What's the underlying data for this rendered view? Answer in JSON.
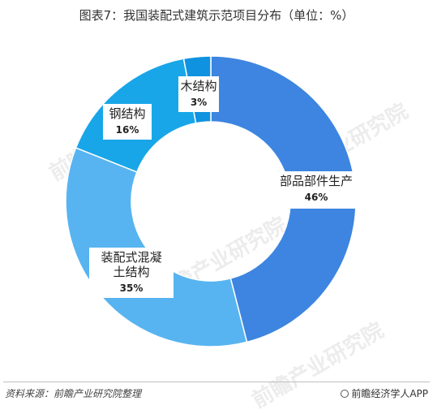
{
  "title": "图表7：我国装配式建筑示范项目分布（单位：%）",
  "chart_data": {
    "type": "pie",
    "title": "图表7：我国装配式建筑示范项目分布（单位：%）",
    "donut": true,
    "slices": [
      {
        "label": "部品部件生产",
        "value": 46,
        "value_label": "46%",
        "color": "#3d85e0"
      },
      {
        "label": "装配式混凝土结构",
        "value": 35,
        "value_label": "35%",
        "color": "#57b4f0"
      },
      {
        "label": "钢结构",
        "value": 16,
        "value_label": "16%",
        "color": "#18a6e8"
      },
      {
        "label": "木结构",
        "value": 3,
        "value_label": "3%",
        "color": "#0f92df"
      }
    ],
    "start_angle_deg": 0,
    "direction": "clockwise",
    "legend": "none"
  },
  "footer": {
    "source": "资料来源：前瞻产业研究院整理",
    "brand": "前瞻经济学人APP"
  },
  "watermark": "前瞻产业研究院"
}
